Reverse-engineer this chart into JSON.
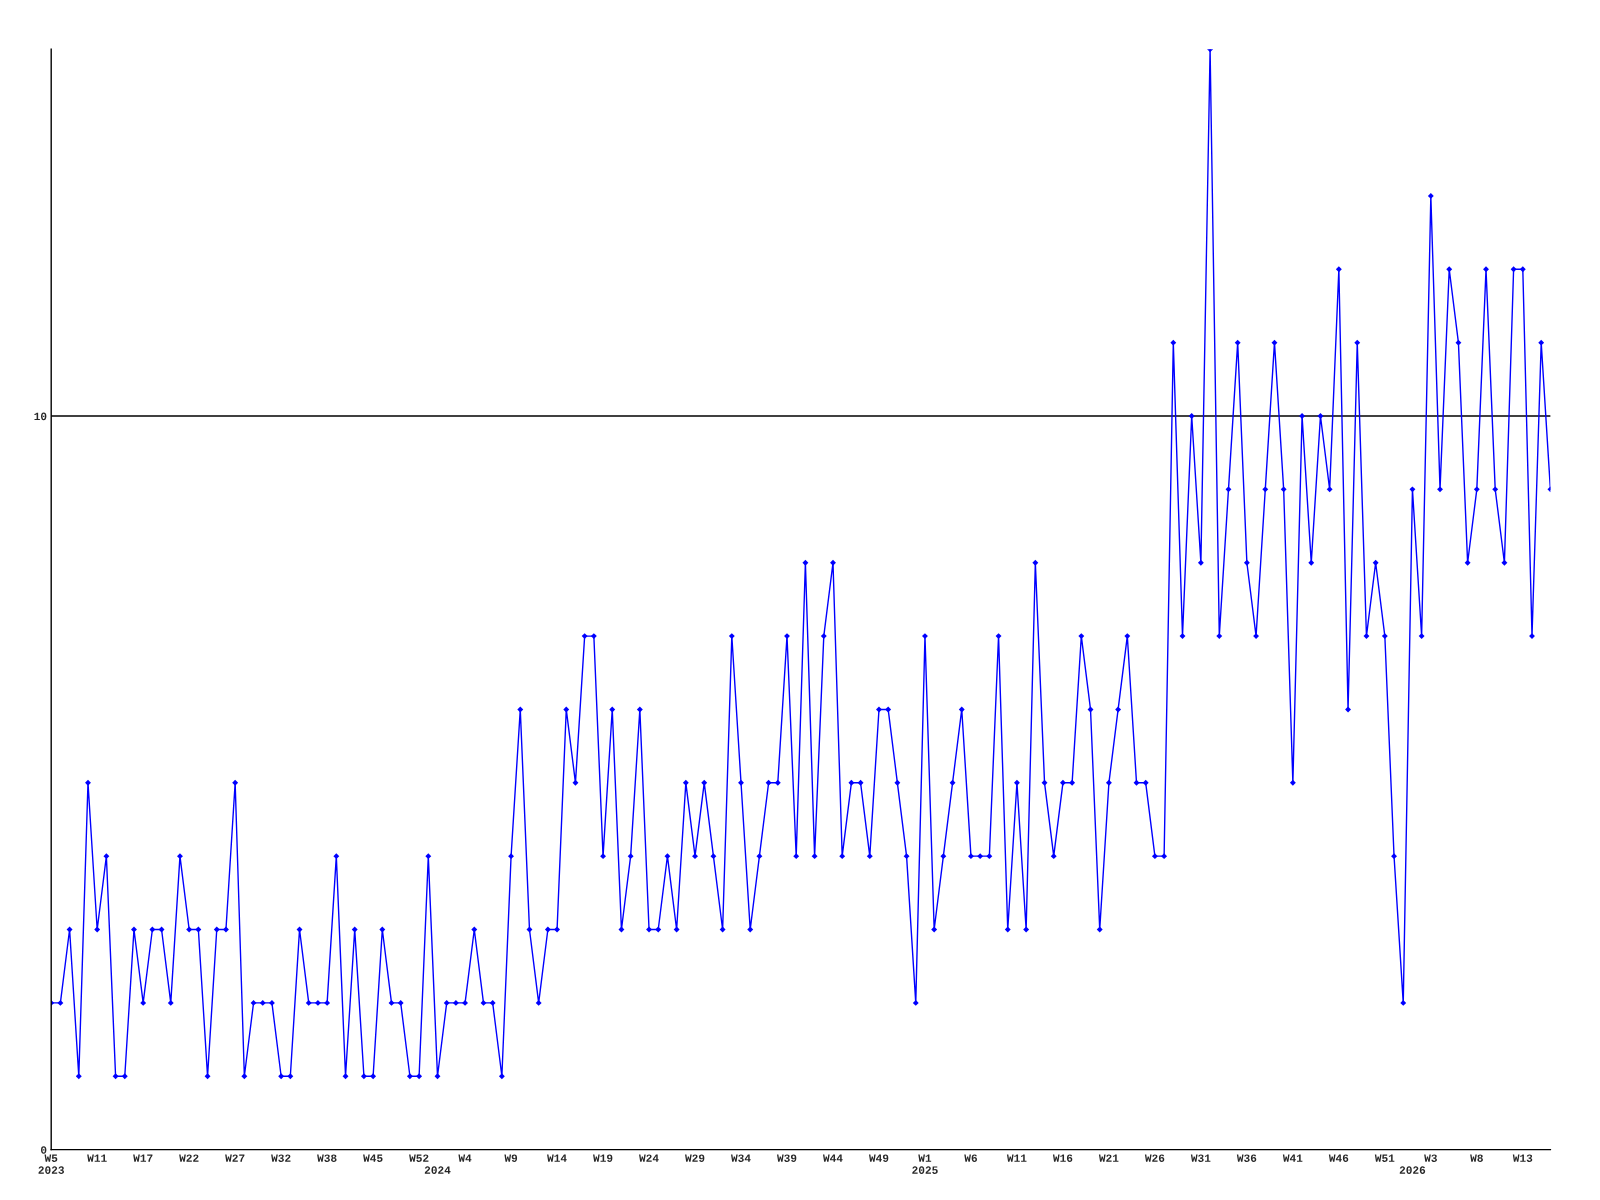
{
  "chart_data": {
    "type": "line",
    "categories": [
      "W5\n2023",
      null,
      null,
      null,
      null,
      "W11",
      null,
      null,
      null,
      null,
      "W17",
      null,
      null,
      null,
      null,
      "W22",
      null,
      null,
      null,
      null,
      "W27",
      null,
      null,
      null,
      null,
      "W32",
      null,
      null,
      null,
      null,
      "W38",
      null,
      null,
      null,
      null,
      "W45",
      null,
      null,
      null,
      null,
      "W52",
      null,
      "\n2024",
      null,
      null,
      "W4",
      null,
      null,
      null,
      null,
      "W9",
      null,
      null,
      null,
      null,
      "W14",
      null,
      null,
      null,
      null,
      "W19",
      null,
      null,
      null,
      null,
      "W24",
      null,
      null,
      null,
      null,
      "W29",
      null,
      null,
      null,
      null,
      "W34",
      null,
      null,
      null,
      null,
      "W39",
      null,
      null,
      null,
      null,
      "W44",
      null,
      null,
      null,
      null,
      "W49",
      null,
      null,
      null,
      null,
      "W1\n2025",
      null,
      null,
      null,
      null,
      "W6",
      null,
      null,
      null,
      null,
      "W11",
      null,
      null,
      null,
      null,
      "W16",
      null,
      null,
      null,
      null,
      "W21",
      null,
      null,
      null,
      null,
      "W26",
      null,
      null,
      null,
      null,
      "W31",
      null,
      null,
      null,
      null,
      "W36",
      null,
      null,
      null,
      null,
      "W41",
      null,
      null,
      null,
      null,
      "W46",
      null,
      null,
      null,
      null,
      "W51",
      null,
      null,
      "\n2026",
      null,
      "W3",
      null,
      null,
      null,
      null,
      "W8",
      null,
      null,
      null,
      null,
      "W13",
      null,
      null,
      null
    ],
    "series": [
      {
        "color": "#0000ff",
        "values": [
          2,
          2,
          3,
          1,
          5,
          3,
          4,
          1,
          1,
          3,
          2,
          3,
          3,
          2,
          4,
          3,
          3,
          1,
          3,
          3,
          5,
          1,
          2,
          2,
          2,
          1,
          1,
          3,
          2,
          2,
          2,
          4,
          1,
          3,
          1,
          1,
          3,
          2,
          2,
          1,
          1,
          4,
          1,
          2,
          2,
          2,
          3,
          2,
          2,
          1,
          4,
          6,
          3,
          2,
          3,
          3,
          6,
          5,
          7,
          7,
          4,
          6,
          3,
          4,
          6,
          3,
          3,
          4,
          3,
          5,
          4,
          5,
          4,
          3,
          7,
          5,
          3,
          4,
          5,
          5,
          7,
          4,
          8,
          4,
          7,
          8,
          4,
          5,
          5,
          4,
          6,
          6,
          5,
          4,
          2,
          7,
          3,
          4,
          5,
          6,
          4,
          4,
          4,
          7,
          3,
          5,
          3,
          8,
          5,
          4,
          5,
          5,
          7,
          6,
          3,
          5,
          6,
          7,
          5,
          5,
          4,
          4,
          11,
          7,
          10,
          8,
          15,
          7,
          9,
          11,
          8,
          7,
          9,
          11,
          9,
          5,
          10,
          8,
          10,
          9,
          12,
          6,
          11,
          7,
          8,
          7,
          4,
          2,
          9,
          7,
          13,
          9,
          12,
          11,
          8,
          9,
          12,
          9,
          8,
          12,
          12,
          7,
          11,
          9
        ]
      }
    ],
    "ylim": [
      0,
      15
    ],
    "yticks": [
      0,
      10
    ],
    "ref_lines": [
      {
        "axis": "y",
        "value": 10,
        "color": "#000000"
      }
    ],
    "marker": "diamond",
    "line_style": "solid",
    "grid": false,
    "legend": false
  }
}
